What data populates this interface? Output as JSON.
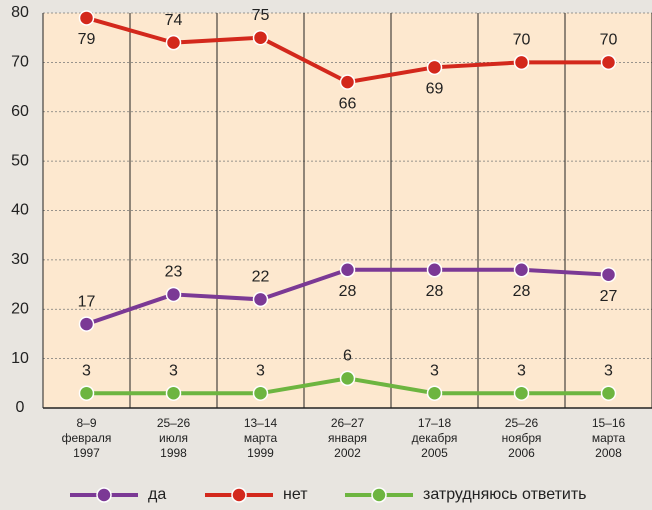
{
  "chart_data": {
    "type": "line",
    "categories": [
      [
        "8–9",
        "февраля",
        "1997"
      ],
      [
        "25–26",
        "июля",
        "1998"
      ],
      [
        "13–14",
        "марта",
        "1999"
      ],
      [
        "26–27",
        "января",
        "2002"
      ],
      [
        "17–18",
        "декабря",
        "2005"
      ],
      [
        "25–26",
        "ноября",
        "2006"
      ],
      [
        "15–16",
        "марта",
        "2008"
      ]
    ],
    "series": [
      {
        "name": "да",
        "color": "#7b3995",
        "values": [
          17,
          23,
          22,
          28,
          28,
          28,
          27
        ]
      },
      {
        "name": "нет",
        "color": "#d3281c",
        "values": [
          79,
          74,
          75,
          66,
          69,
          70,
          70
        ]
      },
      {
        "name": "затрудняюсь ответить",
        "color": "#6db540",
        "values": [
          3,
          3,
          3,
          6,
          3,
          3,
          3
        ]
      }
    ],
    "ylim": [
      0,
      80
    ],
    "yticks": [
      0,
      10,
      20,
      30,
      40,
      50,
      60,
      70,
      80
    ],
    "grid": true
  }
}
